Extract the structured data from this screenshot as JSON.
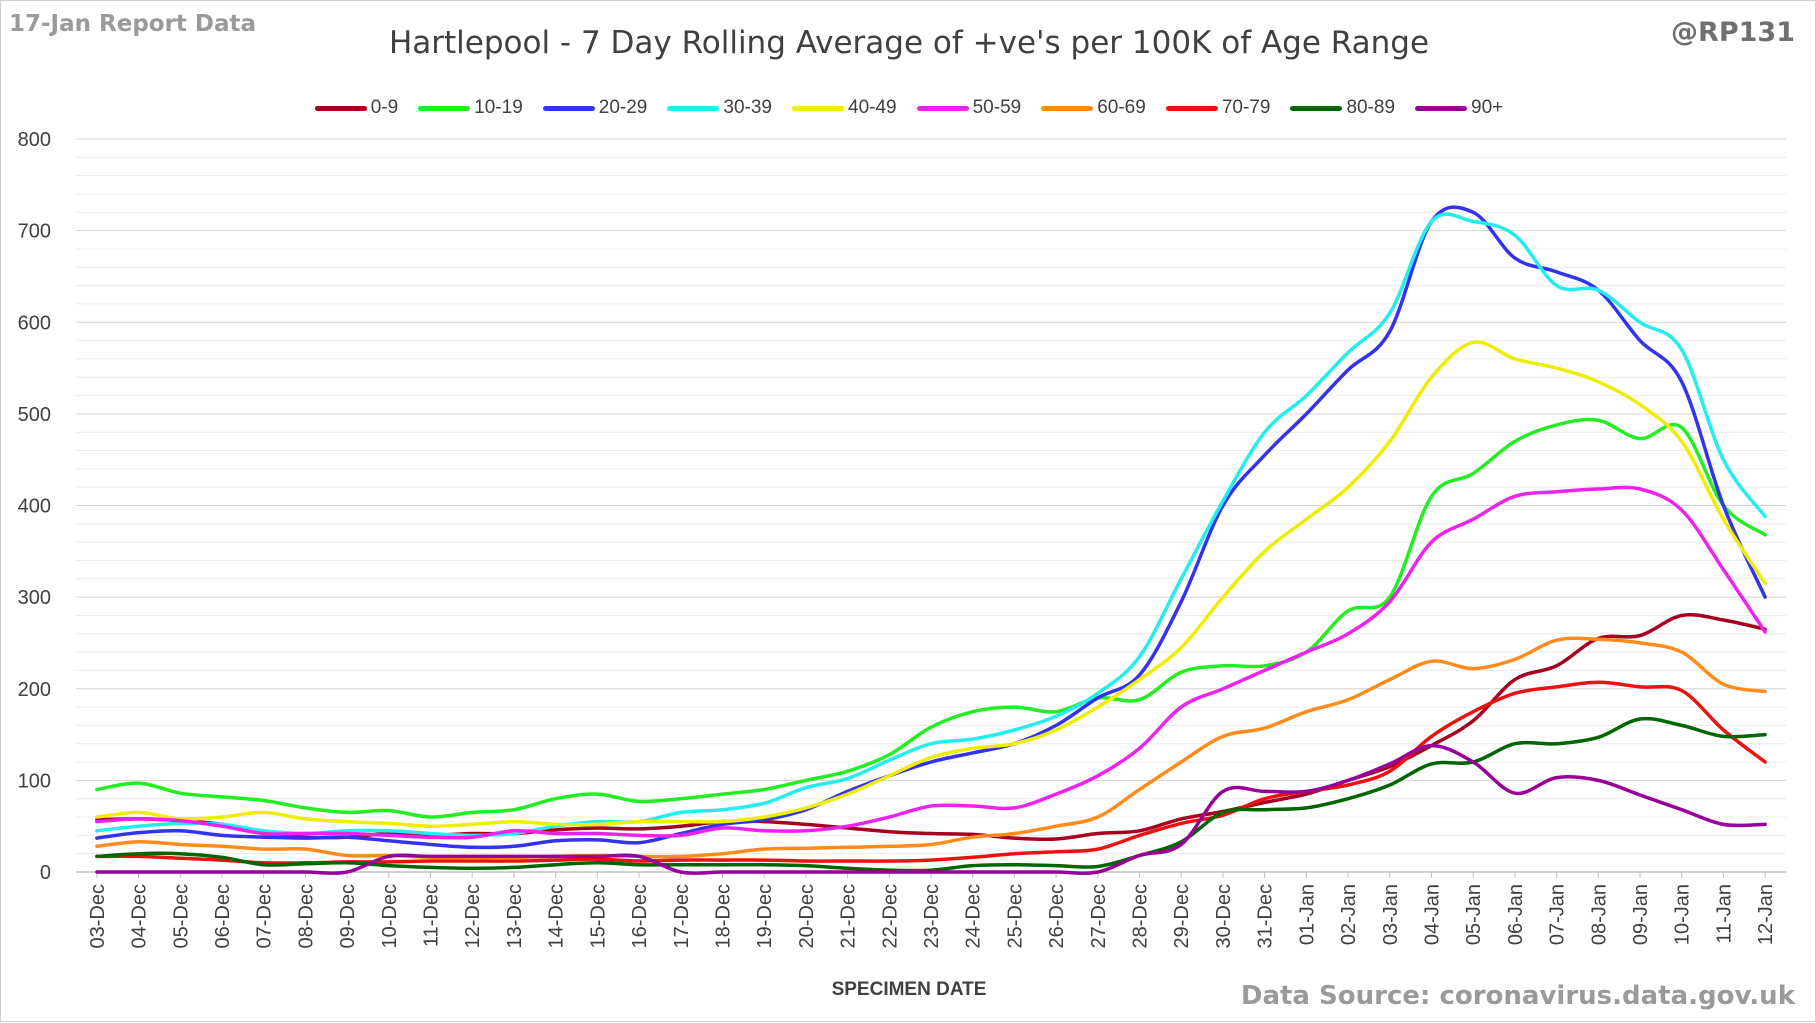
{
  "header": {
    "report_label": "17-Jan Report Data",
    "handle": "@RP131",
    "source": "Data Source: coronavirus.data.gov.uk"
  },
  "chart_data": {
    "type": "line",
    "title": "Hartlepool - 7 Day Rolling Average of +ve's per 100K of Age Range",
    "xlabel": "SPECIMEN DATE",
    "ylabel": "",
    "ylim": [
      0,
      800
    ],
    "yticks": [
      0,
      100,
      200,
      300,
      400,
      500,
      600,
      700,
      800
    ],
    "grid": true,
    "minor_grid_step": 20,
    "legend_position": "top",
    "x": [
      "03-Dec",
      "04-Dec",
      "05-Dec",
      "06-Dec",
      "07-Dec",
      "08-Dec",
      "09-Dec",
      "10-Dec",
      "11-Dec",
      "12-Dec",
      "13-Dec",
      "14-Dec",
      "15-Dec",
      "16-Dec",
      "17-Dec",
      "18-Dec",
      "19-Dec",
      "20-Dec",
      "21-Dec",
      "22-Dec",
      "23-Dec",
      "24-Dec",
      "25-Dec",
      "26-Dec",
      "27-Dec",
      "28-Dec",
      "29-Dec",
      "30-Dec",
      "31-Dec",
      "01-Jan",
      "02-Jan",
      "03-Jan",
      "04-Jan",
      "05-Jan",
      "06-Jan",
      "07-Jan",
      "08-Jan",
      "09-Jan",
      "10-Jan",
      "11-Jan",
      "12-Jan"
    ],
    "series": [
      {
        "name": "0-9",
        "color": "#a50021",
        "values": [
          57,
          58,
          56,
          52,
          42,
          38,
          38,
          42,
          40,
          42,
          42,
          46,
          48,
          47,
          50,
          55,
          55,
          52,
          48,
          44,
          42,
          41,
          37,
          36,
          42,
          45,
          58,
          66,
          76,
          85,
          100,
          115,
          138,
          165,
          210,
          225,
          255,
          258,
          280,
          275,
          265
        ]
      },
      {
        "name": "10-19",
        "color": "#22ee22",
        "values": [
          90,
          97,
          86,
          82,
          78,
          70,
          65,
          67,
          60,
          65,
          68,
          80,
          85,
          77,
          80,
          85,
          90,
          100,
          110,
          128,
          158,
          175,
          180,
          175,
          190,
          188,
          218,
          225,
          225,
          240,
          285,
          300,
          410,
          435,
          470,
          488,
          493,
          473,
          485,
          400,
          368
        ]
      },
      {
        "name": "20-29",
        "color": "#3333ee",
        "values": [
          37,
          43,
          45,
          40,
          38,
          37,
          38,
          34,
          30,
          27,
          28,
          34,
          35,
          32,
          42,
          52,
          57,
          68,
          88,
          105,
          120,
          130,
          140,
          160,
          190,
          215,
          295,
          400,
          455,
          500,
          548,
          590,
          710,
          720,
          670,
          655,
          635,
          580,
          535,
          400,
          300
        ]
      },
      {
        "name": "30-39",
        "color": "#22eeee",
        "values": [
          45,
          50,
          53,
          52,
          45,
          42,
          45,
          45,
          42,
          40,
          42,
          50,
          55,
          55,
          65,
          68,
          75,
          92,
          102,
          122,
          140,
          145,
          155,
          170,
          195,
          235,
          320,
          405,
          480,
          520,
          567,
          610,
          710,
          710,
          695,
          640,
          635,
          600,
          570,
          450,
          388
        ]
      },
      {
        "name": "40-49",
        "color": "#eeee00",
        "values": [
          60,
          65,
          58,
          60,
          65,
          58,
          55,
          53,
          50,
          52,
          55,
          52,
          52,
          55,
          55,
          55,
          60,
          70,
          85,
          105,
          125,
          135,
          140,
          155,
          180,
          210,
          245,
          300,
          350,
          385,
          420,
          470,
          540,
          578,
          560,
          550,
          535,
          510,
          470,
          385,
          315
        ]
      },
      {
        "name": "50-59",
        "color": "#ee22ee",
        "values": [
          55,
          58,
          56,
          50,
          42,
          42,
          42,
          40,
          38,
          38,
          45,
          42,
          42,
          40,
          40,
          48,
          45,
          45,
          50,
          60,
          72,
          72,
          70,
          85,
          105,
          135,
          180,
          200,
          220,
          240,
          260,
          295,
          360,
          385,
          410,
          415,
          418,
          418,
          395,
          330,
          262
        ]
      },
      {
        "name": "60-69",
        "color": "#ff8c1a",
        "values": [
          28,
          33,
          30,
          28,
          25,
          25,
          18,
          18,
          16,
          16,
          16,
          17,
          18,
          17,
          17,
          20,
          25,
          26,
          27,
          28,
          30,
          38,
          42,
          50,
          60,
          90,
          120,
          148,
          157,
          175,
          188,
          210,
          230,
          222,
          232,
          253,
          254,
          250,
          240,
          205,
          197
        ]
      },
      {
        "name": "70-79",
        "color": "#ee1111",
        "values": [
          17,
          17,
          15,
          13,
          10,
          10,
          11,
          11,
          12,
          12,
          12,
          13,
          14,
          12,
          13,
          13,
          13,
          12,
          12,
          12,
          13,
          16,
          20,
          22,
          25,
          40,
          53,
          62,
          80,
          88,
          95,
          110,
          148,
          175,
          195,
          202,
          207,
          202,
          198,
          155,
          120
        ]
      },
      {
        "name": "80-89",
        "color": "#006600",
        "values": [
          17,
          20,
          20,
          16,
          8,
          9,
          10,
          7,
          5,
          4,
          5,
          8,
          10,
          8,
          8,
          8,
          8,
          7,
          4,
          2,
          2,
          7,
          8,
          7,
          6,
          18,
          33,
          65,
          68,
          70,
          80,
          95,
          118,
          120,
          140,
          140,
          147,
          167,
          160,
          148,
          150
        ]
      },
      {
        "name": "90+",
        "color": "#990099",
        "values": [
          0,
          0,
          0,
          0,
          0,
          0,
          0,
          17,
          17,
          17,
          17,
          17,
          17,
          17,
          0,
          0,
          0,
          0,
          0,
          0,
          0,
          0,
          0,
          0,
          0,
          18,
          30,
          88,
          88,
          88,
          100,
          118,
          138,
          120,
          86,
          103,
          100,
          84,
          68,
          52,
          52
        ]
      }
    ]
  }
}
